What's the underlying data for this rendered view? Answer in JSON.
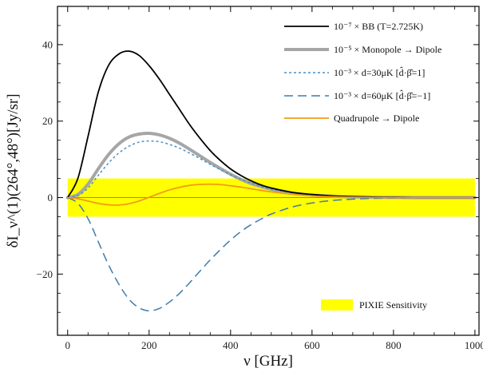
{
  "chart_data": {
    "type": "line",
    "xlabel": "ν [GHz]",
    "ylabel": "δI_ν^(1)(264°,48°)[Jy/sr]",
    "xlim": [
      -25,
      1010
    ],
    "ylim": [
      -36,
      50
    ],
    "x_ticks": [
      0,
      200,
      400,
      600,
      800,
      1000
    ],
    "y_ticks": [
      -20,
      0,
      20,
      40
    ],
    "grid": false,
    "legend_position": "top-right",
    "x": [
      0,
      25,
      50,
      75,
      100,
      125,
      150,
      175,
      200,
      225,
      250,
      275,
      300,
      325,
      350,
      375,
      400,
      425,
      450,
      475,
      500,
      550,
      600,
      650,
      700,
      750,
      800,
      850,
      900,
      950,
      1000
    ],
    "series": [
      {
        "name": "10⁻⁷ × BB (T=2.725K)",
        "color": "#000000",
        "style": "solid",
        "values": [
          0,
          5.0,
          16.0,
          27.5,
          34.5,
          37.5,
          38.3,
          37.2,
          34.5,
          31.0,
          27.0,
          23.0,
          19.0,
          15.5,
          12.3,
          9.7,
          7.5,
          5.8,
          4.4,
          3.3,
          2.5,
          1.4,
          0.8,
          0.45,
          0.25,
          0.13,
          0.07,
          0.04,
          0.02,
          0.01,
          0.0
        ]
      },
      {
        "name": "10⁻⁵ × Monopole → Dipole",
        "color": "#a6a6a6",
        "style": "thick",
        "values": [
          0,
          0.8,
          3.5,
          7.5,
          11.2,
          14.0,
          15.8,
          16.6,
          16.8,
          16.4,
          15.5,
          14.2,
          12.6,
          10.9,
          9.2,
          7.6,
          6.1,
          4.8,
          3.7,
          2.9,
          2.2,
          1.2,
          0.65,
          0.35,
          0.18,
          0.09,
          0.05,
          0.02,
          0.01,
          0.0,
          0.0
        ]
      },
      {
        "name": "10⁻³ × d=30μK [d̂·β̂=1]",
        "color": "#4a90c4",
        "style": "dotted",
        "values": [
          0,
          0.5,
          2.5,
          5.8,
          9.0,
          11.6,
          13.4,
          14.5,
          14.8,
          14.6,
          13.9,
          12.9,
          11.6,
          10.2,
          8.7,
          7.3,
          6.0,
          4.8,
          3.8,
          2.9,
          2.2,
          1.3,
          0.7,
          0.4,
          0.2,
          0.1,
          0.05,
          0.02,
          0.01,
          0.0,
          0.0
        ]
      },
      {
        "name": "10⁻³ × d=60μK [d̂·β̂=−1]",
        "color": "#3d7cab",
        "style": "dashed",
        "values": [
          0,
          -1.5,
          -5.5,
          -11.5,
          -17.5,
          -22.5,
          -26.5,
          -28.8,
          -29.6,
          -29.0,
          -27.3,
          -25.0,
          -22.2,
          -19.2,
          -16.3,
          -13.6,
          -11.1,
          -8.9,
          -7.1,
          -5.6,
          -4.3,
          -2.5,
          -1.4,
          -0.75,
          -0.4,
          -0.2,
          -0.1,
          -0.05,
          -0.02,
          -0.01,
          0.0
        ]
      },
      {
        "name": "Quadrupole → Dipole",
        "color": "#f39c12",
        "style": "solid",
        "values": [
          0,
          -0.3,
          -0.9,
          -1.5,
          -1.9,
          -1.95,
          -1.6,
          -0.9,
          0.1,
          1.1,
          2.0,
          2.7,
          3.2,
          3.45,
          3.5,
          3.4,
          3.1,
          2.75,
          2.3,
          1.9,
          1.5,
          0.9,
          0.45,
          0.2,
          0.08,
          0.03,
          0.01,
          0.0,
          0.0,
          0.0,
          0.0
        ]
      }
    ],
    "band": {
      "name": "PIXIE Sensitivity",
      "color": "#ffff00",
      "x_range": [
        0,
        1000
      ],
      "y_range": [
        -5,
        5
      ]
    }
  }
}
